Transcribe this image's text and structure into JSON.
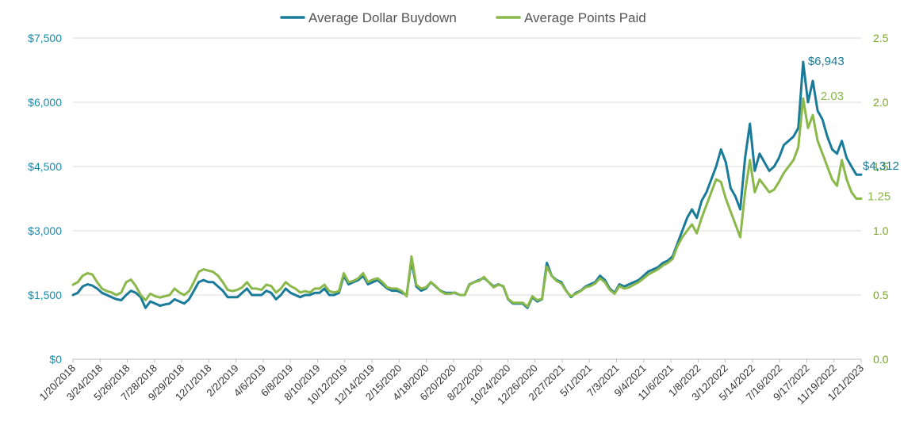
{
  "chart_data": {
    "type": "line",
    "legend": {
      "placement": "top-center",
      "entries": [
        "Average Dollar Buydown",
        "Average Points Paid"
      ]
    },
    "grid": true,
    "left_axis": {
      "ticks": [
        "$0",
        "$1,500",
        "$3,000",
        "$4,500",
        "$6,000",
        "$7,500"
      ],
      "range": [
        0,
        7500
      ]
    },
    "right_axis": {
      "ticks": [
        "0.0",
        "0.5",
        "1.0",
        "1.5",
        "2.0",
        "2.5"
      ],
      "range": [
        0,
        2.5
      ]
    },
    "x_tick_labels": [
      "1/20/2018",
      "3/24/2018",
      "5/26/2018",
      "7/28/2018",
      "9/29/2018",
      "12/1/2018",
      "2/2/2019",
      "4/6/2019",
      "6/8/2019",
      "8/10/2019",
      "10/12/2019",
      "12/14/2019",
      "2/15/2020",
      "4/18/2020",
      "6/20/2020",
      "8/22/2020",
      "10/24/2020",
      "12/26/2020",
      "2/27/2021",
      "5/1/2021",
      "7/3/2021",
      "9/4/2021",
      "11/6/2021",
      "1/8/2022",
      "3/12/2022",
      "5/14/2022",
      "7/16/2022",
      "9/17/2022",
      "11/19/2022",
      "1/21/2023"
    ],
    "series": [
      {
        "name": "Average Dollar Buydown",
        "axis": "left",
        "color": "#1a7a99",
        "values": [
          1500,
          1550,
          1700,
          1750,
          1720,
          1650,
          1550,
          1500,
          1450,
          1400,
          1380,
          1500,
          1600,
          1550,
          1450,
          1200,
          1350,
          1300,
          1250,
          1280,
          1300,
          1400,
          1350,
          1300,
          1400,
          1600,
          1800,
          1850,
          1800,
          1800,
          1700,
          1600,
          1450,
          1450,
          1450,
          1550,
          1650,
          1500,
          1500,
          1500,
          1600,
          1550,
          1400,
          1500,
          1650,
          1550,
          1500,
          1450,
          1500,
          1500,
          1550,
          1550,
          1650,
          1500,
          1500,
          1550,
          1950,
          1750,
          1800,
          1850,
          1950,
          1750,
          1800,
          1850,
          1750,
          1650,
          1600,
          1600,
          1550,
          1500,
          2300,
          1700,
          1600,
          1650,
          1800,
          1700,
          1600,
          1550,
          1550,
          1550,
          1500,
          1500,
          1750,
          1800,
          1850,
          1900,
          1800,
          1700,
          1750,
          1700,
          1400,
          1300,
          1300,
          1300,
          1200,
          1450,
          1350,
          1400,
          2250,
          1950,
          1850,
          1800,
          1600,
          1450,
          1550,
          1600,
          1700,
          1750,
          1800,
          1950,
          1850,
          1650,
          1550,
          1750,
          1700,
          1750,
          1800,
          1850,
          1950,
          2050,
          2100,
          2150,
          2250,
          2300,
          2400,
          2700,
          3000,
          3300,
          3500,
          3300,
          3700,
          3900,
          4200,
          4500,
          4900,
          4600,
          4000,
          3800,
          3500,
          4700,
          5500,
          4400,
          4800,
          4600,
          4400,
          4500,
          4700,
          5000,
          5100,
          5200,
          5400,
          6943,
          6000,
          6500,
          5800,
          5600,
          5200,
          4900,
          4800,
          5100,
          4700,
          4500,
          4312,
          4312
        ]
      },
      {
        "name": "Average Points Paid",
        "axis": "right",
        "color": "#8ab84a",
        "values": [
          0.58,
          0.6,
          0.65,
          0.67,
          0.66,
          0.6,
          0.55,
          0.53,
          0.52,
          0.5,
          0.52,
          0.6,
          0.62,
          0.57,
          0.5,
          0.46,
          0.51,
          0.49,
          0.48,
          0.49,
          0.5,
          0.55,
          0.52,
          0.5,
          0.53,
          0.6,
          0.68,
          0.7,
          0.69,
          0.68,
          0.65,
          0.6,
          0.54,
          0.53,
          0.54,
          0.56,
          0.6,
          0.55,
          0.55,
          0.54,
          0.58,
          0.57,
          0.52,
          0.55,
          0.6,
          0.57,
          0.55,
          0.52,
          0.53,
          0.52,
          0.55,
          0.55,
          0.58,
          0.53,
          0.52,
          0.53,
          0.67,
          0.6,
          0.61,
          0.63,
          0.67,
          0.6,
          0.62,
          0.63,
          0.6,
          0.56,
          0.55,
          0.55,
          0.53,
          0.49,
          0.8,
          0.58,
          0.55,
          0.56,
          0.6,
          0.57,
          0.53,
          0.51,
          0.51,
          0.52,
          0.5,
          0.5,
          0.58,
          0.6,
          0.61,
          0.64,
          0.6,
          0.56,
          0.58,
          0.57,
          0.47,
          0.44,
          0.44,
          0.44,
          0.41,
          0.49,
          0.46,
          0.47,
          0.72,
          0.65,
          0.61,
          0.59,
          0.53,
          0.49,
          0.51,
          0.53,
          0.56,
          0.57,
          0.59,
          0.63,
          0.6,
          0.54,
          0.51,
          0.57,
          0.55,
          0.56,
          0.58,
          0.6,
          0.63,
          0.66,
          0.68,
          0.7,
          0.73,
          0.75,
          0.78,
          0.88,
          0.95,
          1.0,
          1.05,
          0.98,
          1.1,
          1.2,
          1.3,
          1.4,
          1.38,
          1.25,
          1.15,
          1.05,
          0.95,
          1.3,
          1.55,
          1.3,
          1.4,
          1.35,
          1.3,
          1.32,
          1.38,
          1.45,
          1.5,
          1.55,
          1.65,
          2.03,
          1.8,
          1.9,
          1.7,
          1.6,
          1.5,
          1.4,
          1.35,
          1.55,
          1.4,
          1.3,
          1.25,
          1.25
        ]
      }
    ],
    "annotations": [
      {
        "text": "$6,943",
        "series": "Average Dollar Buydown"
      },
      {
        "text": "$4,312",
        "series": "Average Dollar Buydown"
      },
      {
        "text": "2.03",
        "series": "Average Points Paid"
      },
      {
        "text": "1.25",
        "series": "Average Points Paid"
      }
    ]
  }
}
